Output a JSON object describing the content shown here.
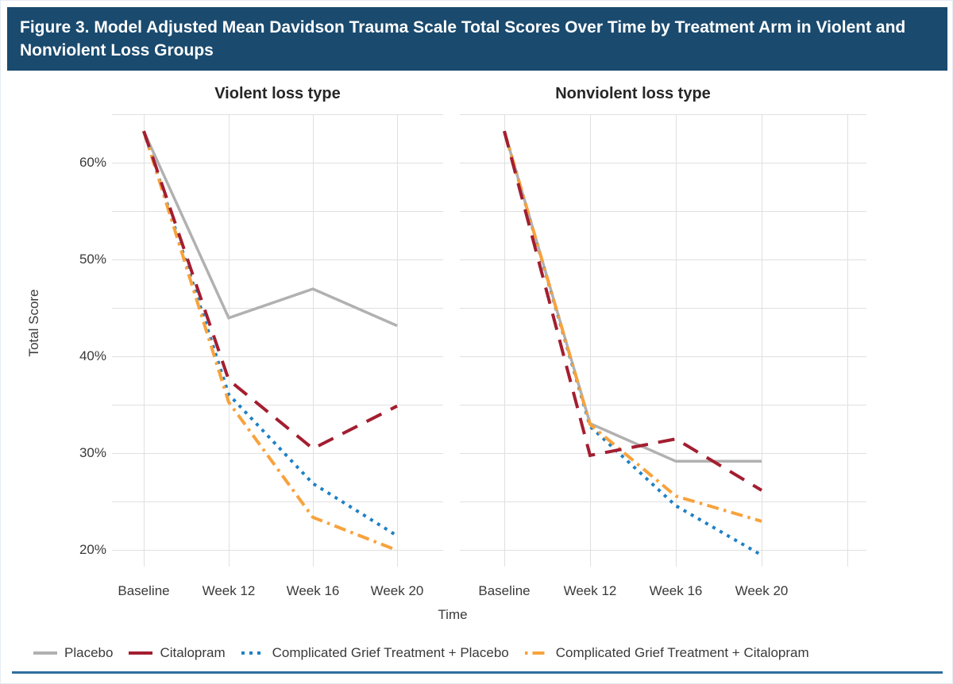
{
  "figure": {
    "title": "Figure 3. Model Adjusted Mean Davidson Trauma Scale Total Scores Over Time by Treatment Arm in Violent and Nonviolent Loss Groups"
  },
  "axes": {
    "y_label": "Total Score",
    "x_label": "Time"
  },
  "colors": {
    "titlebar_bg": "#1a4a6e",
    "titlebar_text": "#ffffff",
    "bottom_rule": "#2f6f9e",
    "gridline": "#e0e0e0"
  },
  "chart_data": [
    {
      "type": "line",
      "title": "Violent loss type",
      "x": [
        "Baseline",
        "Week 12",
        "Week 16",
        "Week 20"
      ],
      "xlabel": "Time",
      "ylabel": "Total Score",
      "ylim": [
        18.3,
        65
      ],
      "yticks": [
        20,
        30,
        40,
        50,
        60
      ],
      "ytick_suffix": "%",
      "gridline_step": 5,
      "grid": true,
      "legend_position": "bottom",
      "series": [
        {
          "name": "Placebo",
          "color": "#b1b1b1",
          "dash": "solid",
          "values": [
            63.3,
            44.0,
            47.0,
            43.2
          ]
        },
        {
          "name": "Citalopram",
          "color": "#a31e30",
          "dash": "longdash",
          "values": [
            63.3,
            37.6,
            30.5,
            34.9
          ]
        },
        {
          "name": "Complicated Grief Treatment + Placebo",
          "color": "#1e81c4",
          "dash": "dot",
          "values": [
            63.3,
            36.1,
            26.9,
            21.5
          ]
        },
        {
          "name": "Complicated Grief Treatment + Citalopram",
          "color": "#f8a23c",
          "dash": "dashdot",
          "values": [
            63.3,
            35.3,
            23.4,
            20.0
          ]
        }
      ]
    },
    {
      "type": "line",
      "title": "Nonviolent loss type",
      "x": [
        "Baseline",
        "Week 12",
        "Week 16",
        "Week 20"
      ],
      "xlabel": "Time",
      "ylabel": "Total Score",
      "ylim": [
        18.3,
        65
      ],
      "yticks": [
        20,
        30,
        40,
        50,
        60
      ],
      "ytick_suffix": "%",
      "gridline_step": 5,
      "grid": true,
      "legend_position": "bottom",
      "series": [
        {
          "name": "Placebo",
          "color": "#b1b1b1",
          "dash": "solid",
          "values": [
            63.3,
            33.1,
            29.2,
            29.2
          ]
        },
        {
          "name": "Citalopram",
          "color": "#a31e30",
          "dash": "longdash",
          "values": [
            63.3,
            29.8,
            31.5,
            26.2
          ]
        },
        {
          "name": "Complicated Grief Treatment + Placebo",
          "color": "#1e81c4",
          "dash": "dot",
          "values": [
            63.3,
            32.8,
            24.6,
            19.5
          ]
        },
        {
          "name": "Complicated Grief Treatment + Citalopram",
          "color": "#f8a23c",
          "dash": "dashdot",
          "values": [
            63.3,
            33.0,
            25.6,
            23.0
          ]
        }
      ]
    }
  ]
}
